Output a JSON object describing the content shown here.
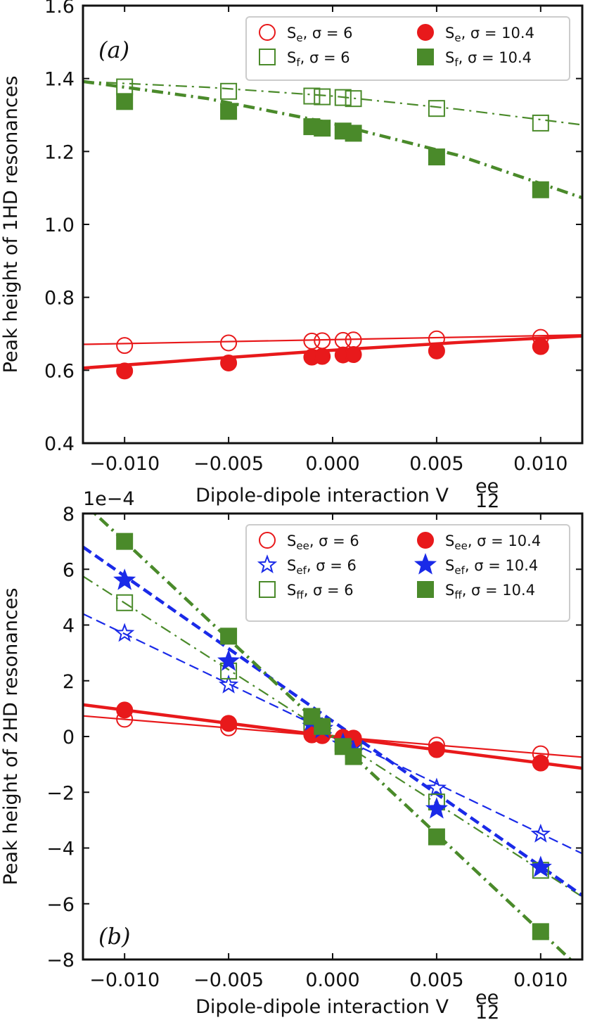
{
  "chart_data": [
    {
      "id": "a",
      "type": "line",
      "panel_label": "(a)",
      "ylabel": "Peak height of 1HD resonances",
      "xlabel": "Dipole-dipole interaction V",
      "xlabel_super": "ee",
      "xlabel_sub": "12",
      "xlim": [
        -0.012,
        0.012
      ],
      "ylim": [
        0.4,
        1.6
      ],
      "xticks": [
        -0.01,
        -0.005,
        0.0,
        0.005,
        0.01
      ],
      "xtick_labels": [
        "−0.010",
        "−0.005",
        "0.000",
        "0.005",
        "0.010"
      ],
      "yticks": [
        0.4,
        0.6,
        0.8,
        1.0,
        1.2,
        1.4,
        1.6
      ],
      "ytick_labels": [
        "0.4",
        "0.6",
        "0.8",
        "1.0",
        "1.2",
        "1.4",
        "1.6"
      ],
      "x": [
        -0.01,
        -0.005,
        -0.001,
        -0.0005,
        0.0005,
        0.001,
        0.005,
        0.01
      ],
      "legend_location": "top-right",
      "series": [
        {
          "name": "S",
          "sub": "e",
          "label_suffix": ", σ = 6",
          "color": "#e8191b",
          "marker": "circle-open",
          "line": "solid",
          "width": 2.2,
          "values": [
            0.668,
            0.675,
            0.68,
            0.681,
            0.682,
            0.683,
            0.686,
            0.69
          ],
          "fit": [
            [
              -0.012,
              0.671
            ],
            [
              0.012,
              0.697
            ]
          ]
        },
        {
          "name": "S",
          "sub": "f",
          "label_suffix": ", σ = 6",
          "color": "#4a8a2a",
          "marker": "square-open",
          "line": "dashdot",
          "width": 2.2,
          "values": [
            1.377,
            1.365,
            1.352,
            1.35,
            1.348,
            1.345,
            1.318,
            1.278
          ],
          "fit": [
            [
              -0.012,
              1.392
            ],
            [
              -0.006,
              1.376
            ],
            [
              0.0,
              1.352
            ],
            [
              0.006,
              1.316
            ],
            [
              0.012,
              1.273
            ]
          ]
        },
        {
          "name": "S",
          "sub": "e",
          "label_suffix": ", σ = 10.4",
          "color": "#e8191b",
          "marker": "circle-filled",
          "line": "solid",
          "width": 4.5,
          "values": [
            0.598,
            0.62,
            0.636,
            0.638,
            0.642,
            0.643,
            0.653,
            0.665
          ],
          "fit": [
            [
              -0.012,
              0.606
            ],
            [
              -0.006,
              0.631
            ],
            [
              0.0,
              0.655
            ],
            [
              0.006,
              0.676
            ],
            [
              0.012,
              0.694
            ]
          ]
        },
        {
          "name": "S",
          "sub": "f",
          "label_suffix": ", σ = 10.4",
          "color": "#4a8a2a",
          "marker": "square-filled",
          "line": "dashdot",
          "width": 4.5,
          "values": [
            1.337,
            1.31,
            1.268,
            1.264,
            1.256,
            1.25,
            1.185,
            1.095
          ],
          "fit": [
            [
              -0.012,
              1.392
            ],
            [
              -0.006,
              1.345
            ],
            [
              0.0,
              1.277
            ],
            [
              0.006,
              1.19
            ],
            [
              0.012,
              1.073
            ]
          ]
        }
      ]
    },
    {
      "id": "b",
      "type": "line",
      "panel_label": "(b)",
      "offset_text": "1e−4",
      "ylabel": "Peak height of 2HD resonances",
      "xlabel": "Dipole-dipole interaction V",
      "xlabel_super": "ee",
      "xlabel_sub": "12",
      "xlim": [
        -0.012,
        0.012
      ],
      "ylim": [
        -8,
        8
      ],
      "y_unit_scale": "1e-4",
      "xticks": [
        -0.01,
        -0.005,
        0.0,
        0.005,
        0.01
      ],
      "xtick_labels": [
        "−0.010",
        "−0.005",
        "0.000",
        "0.005",
        "0.010"
      ],
      "yticks": [
        -8,
        -6,
        -4,
        -2,
        0,
        2,
        4,
        6,
        8
      ],
      "ytick_labels": [
        "−8",
        "−6",
        "−4",
        "−2",
        "0",
        "2",
        "4",
        "6",
        "8"
      ],
      "x": [
        -0.01,
        -0.005,
        -0.001,
        -0.0005,
        0.0005,
        0.001,
        0.005,
        0.01
      ],
      "legend_location": "top-right",
      "series": [
        {
          "name": "S",
          "sub": "ee",
          "label_suffix": ", σ = 6",
          "color": "#e8191b",
          "marker": "circle-open",
          "line": "solid",
          "width": 2.2,
          "values": [
            0.62,
            0.31,
            0.06,
            0.03,
            -0.03,
            -0.06,
            -0.31,
            -0.62
          ],
          "fit": [
            [
              -0.012,
              0.74
            ],
            [
              0.012,
              -0.74
            ]
          ]
        },
        {
          "name": "S",
          "sub": "ef",
          "label_suffix": ", σ = 6",
          "color": "#1a2ae8",
          "marker": "star-open",
          "line": "dashed",
          "width": 2.2,
          "values": [
            3.7,
            1.85,
            0.37,
            0.18,
            -0.18,
            -0.37,
            -1.85,
            -3.5
          ],
          "fit": [
            [
              -0.012,
              4.4
            ],
            [
              0.012,
              -4.2
            ]
          ]
        },
        {
          "name": "S",
          "sub": "ff",
          "label_suffix": ", σ = 6",
          "color": "#4a8a2a",
          "marker": "square-open",
          "line": "dashdot",
          "width": 2.2,
          "values": [
            4.8,
            2.35,
            0.47,
            0.24,
            -0.24,
            -0.47,
            -2.35,
            -4.8
          ],
          "fit": [
            [
              -0.012,
              5.75
            ],
            [
              0.012,
              -5.75
            ]
          ]
        },
        {
          "name": "S",
          "sub": "ee",
          "label_suffix": ", σ = 10.4",
          "color": "#e8191b",
          "marker": "circle-filled",
          "line": "solid",
          "width": 4.5,
          "values": [
            0.95,
            0.47,
            0.1,
            0.05,
            -0.05,
            -0.1,
            -0.47,
            -0.95
          ],
          "fit": [
            [
              -0.012,
              1.14
            ],
            [
              0.012,
              -1.14
            ]
          ]
        },
        {
          "name": "S",
          "sub": "ef",
          "label_suffix": ", σ = 10.4",
          "color": "#1a2ae8",
          "marker": "star-filled",
          "line": "dashed",
          "width": 4.5,
          "values": [
            5.6,
            2.7,
            0.55,
            0.28,
            -0.28,
            -0.55,
            -2.6,
            -4.7
          ],
          "fit": [
            [
              -0.012,
              6.8
            ],
            [
              0.012,
              -5.7
            ]
          ]
        },
        {
          "name": "S",
          "sub": "ff",
          "label_suffix": ", σ = 10.4",
          "color": "#4a8a2a",
          "marker": "square-filled",
          "line": "dashdot",
          "width": 4.5,
          "values": [
            7.0,
            3.6,
            0.72,
            0.36,
            -0.36,
            -0.72,
            -3.6,
            -7.0
          ],
          "fit": [
            [
              -0.012,
              8.4
            ],
            [
              0.012,
              -8.4
            ]
          ]
        }
      ]
    }
  ]
}
